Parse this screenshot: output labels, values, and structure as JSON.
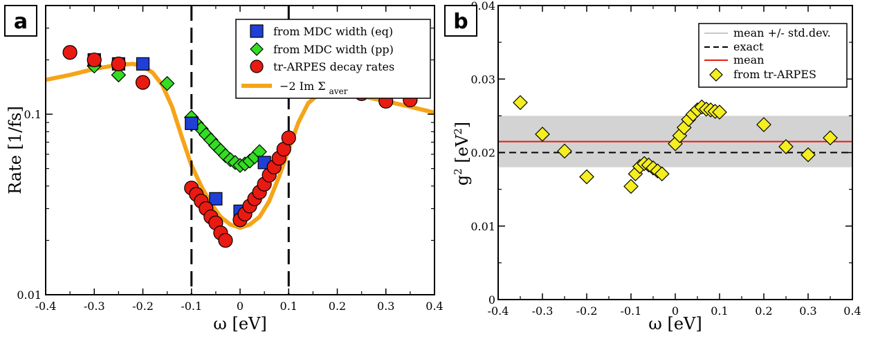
{
  "panels": [
    {
      "letter": "a"
    },
    {
      "letter": "b"
    }
  ],
  "chart_data": [
    {
      "type": "scatter",
      "panel": "a",
      "xlabel": "ω [eV]",
      "ylabel": "Rate [1/fs]",
      "xlim": [
        -0.4,
        0.4
      ],
      "ylim": [
        0.01,
        0.4
      ],
      "yscale": "log",
      "xticks": [
        "-0.4",
        "-0.3",
        "-0.2",
        "-0.1",
        "0",
        "0.1",
        "0.2",
        "0.3",
        "0.4"
      ],
      "yticks": [
        {
          "value": 0.01,
          "label": "0.01"
        },
        {
          "value": 0.1,
          "label": "0.1"
        }
      ],
      "vlines": [
        -0.1,
        0.1
      ],
      "legend_position": "top-right",
      "series": [
        {
          "name": "from MDC width (eq)",
          "marker": "square",
          "color": "#1f3fd6",
          "points": [
            [
              -0.3,
              0.2
            ],
            [
              -0.25,
              0.19
            ],
            [
              -0.2,
              0.19
            ],
            [
              -0.1,
              0.089
            ],
            [
              -0.05,
              0.034
            ],
            [
              0.0,
              0.029
            ],
            [
              0.05,
              0.054
            ]
          ]
        },
        {
          "name": "from MDC width (pp)",
          "marker": "diamond",
          "color": "#33dd22",
          "points": [
            [
              -0.3,
              0.185
            ],
            [
              -0.25,
              0.165
            ],
            [
              -0.15,
              0.148
            ],
            [
              -0.1,
              0.096
            ],
            [
              -0.09,
              0.089
            ],
            [
              -0.08,
              0.083
            ],
            [
              -0.07,
              0.077
            ],
            [
              -0.06,
              0.072
            ],
            [
              -0.05,
              0.067
            ],
            [
              -0.04,
              0.063
            ],
            [
              -0.03,
              0.059
            ],
            [
              -0.02,
              0.056
            ],
            [
              -0.01,
              0.054
            ],
            [
              0.0,
              0.052
            ],
            [
              0.01,
              0.053
            ],
            [
              0.02,
              0.055
            ],
            [
              0.03,
              0.058
            ],
            [
              0.04,
              0.062
            ]
          ]
        },
        {
          "name": "tr-ARPES decay rates",
          "marker": "circle",
          "color": "#e81a12",
          "points": [
            [
              -0.35,
              0.22
            ],
            [
              -0.3,
              0.2
            ],
            [
              -0.25,
              0.19
            ],
            [
              -0.2,
              0.15
            ],
            [
              -0.1,
              0.039
            ],
            [
              -0.09,
              0.036
            ],
            [
              -0.08,
              0.033
            ],
            [
              -0.07,
              0.03
            ],
            [
              -0.06,
              0.027
            ],
            [
              -0.05,
              0.025
            ],
            [
              -0.04,
              0.022
            ],
            [
              -0.03,
              0.02
            ],
            [
              0.0,
              0.026
            ],
            [
              0.01,
              0.028
            ],
            [
              0.02,
              0.031
            ],
            [
              0.03,
              0.034
            ],
            [
              0.04,
              0.037
            ],
            [
              0.05,
              0.041
            ],
            [
              0.06,
              0.046
            ],
            [
              0.07,
              0.051
            ],
            [
              0.08,
              0.057
            ],
            [
              0.09,
              0.064
            ],
            [
              0.1,
              0.074
            ],
            [
              0.2,
              0.155
            ],
            [
              0.25,
              0.13
            ],
            [
              0.3,
              0.118
            ],
            [
              0.35,
              0.12
            ]
          ]
        },
        {
          "name": "−2 Im Σ",
          "name_subscript": "aver",
          "type": "line",
          "color": "#f5a418",
          "points": [
            [
              -0.4,
              0.155
            ],
            [
              -0.35,
              0.165
            ],
            [
              -0.3,
              0.178
            ],
            [
              -0.25,
              0.188
            ],
            [
              -0.22,
              0.19
            ],
            [
              -0.2,
              0.185
            ],
            [
              -0.18,
              0.17
            ],
            [
              -0.16,
              0.145
            ],
            [
              -0.14,
              0.11
            ],
            [
              -0.12,
              0.075
            ],
            [
              -0.1,
              0.052
            ],
            [
              -0.08,
              0.04
            ],
            [
              -0.06,
              0.032
            ],
            [
              -0.04,
              0.027
            ],
            [
              -0.02,
              0.0245
            ],
            [
              0.0,
              0.0235
            ],
            [
              0.02,
              0.0245
            ],
            [
              0.04,
              0.027
            ],
            [
              0.06,
              0.033
            ],
            [
              0.08,
              0.045
            ],
            [
              0.1,
              0.064
            ],
            [
              0.12,
              0.09
            ],
            [
              0.14,
              0.115
            ],
            [
              0.16,
              0.128
            ],
            [
              0.18,
              0.132
            ],
            [
              0.2,
              0.131
            ],
            [
              0.25,
              0.126
            ],
            [
              0.3,
              0.118
            ],
            [
              0.35,
              0.11
            ],
            [
              0.4,
              0.102
            ]
          ]
        }
      ]
    },
    {
      "type": "scatter",
      "panel": "b",
      "xlabel": "ω [eV]",
      "ylabel": "g",
      "ylabel_sup": "2",
      "ylabel_unit": "[eV",
      "ylabel_unit_sup": "2",
      "ylabel_close": "]",
      "xlim": [
        -0.4,
        0.4
      ],
      "ylim": [
        0,
        0.04
      ],
      "xticks": [
        "-0.4",
        "-0.3",
        "-0.2",
        "-0.1",
        "0",
        "0.1",
        "0.2",
        "0.3",
        "0.4"
      ],
      "yticks": [
        "0",
        "0.01",
        "0.02",
        "0.03",
        "0.04"
      ],
      "legend_position": "top-right",
      "mean": 0.0215,
      "std_band": [
        0.018,
        0.025
      ],
      "exact": 0.02,
      "legend": [
        {
          "name": "mean +/- std.dev.",
          "style": "band",
          "color": "#c8c8c8"
        },
        {
          "name": "exact",
          "style": "dashed",
          "color": "#000000"
        },
        {
          "name": "mean",
          "style": "line",
          "color": "#e81a12"
        },
        {
          "name": "from tr-ARPES",
          "style": "diamond",
          "color": "#f5ee20"
        }
      ],
      "points": [
        [
          -0.35,
          0.0268
        ],
        [
          -0.3,
          0.0225
        ],
        [
          -0.25,
          0.0202
        ],
        [
          -0.2,
          0.0167
        ],
        [
          -0.1,
          0.0154
        ],
        [
          -0.09,
          0.0171
        ],
        [
          -0.08,
          0.0181
        ],
        [
          -0.07,
          0.0185
        ],
        [
          -0.06,
          0.0183
        ],
        [
          -0.05,
          0.0179
        ],
        [
          -0.04,
          0.0175
        ],
        [
          -0.03,
          0.0171
        ],
        [
          0.0,
          0.0212
        ],
        [
          0.01,
          0.0223
        ],
        [
          0.02,
          0.0234
        ],
        [
          0.03,
          0.0245
        ],
        [
          0.04,
          0.0252
        ],
        [
          0.05,
          0.0258
        ],
        [
          0.06,
          0.0262
        ],
        [
          0.07,
          0.0259
        ],
        [
          0.08,
          0.0258
        ],
        [
          0.09,
          0.0256
        ],
        [
          0.1,
          0.0255
        ],
        [
          0.2,
          0.0238
        ],
        [
          0.25,
          0.0208
        ],
        [
          0.3,
          0.0197
        ],
        [
          0.35,
          0.022
        ]
      ]
    }
  ]
}
